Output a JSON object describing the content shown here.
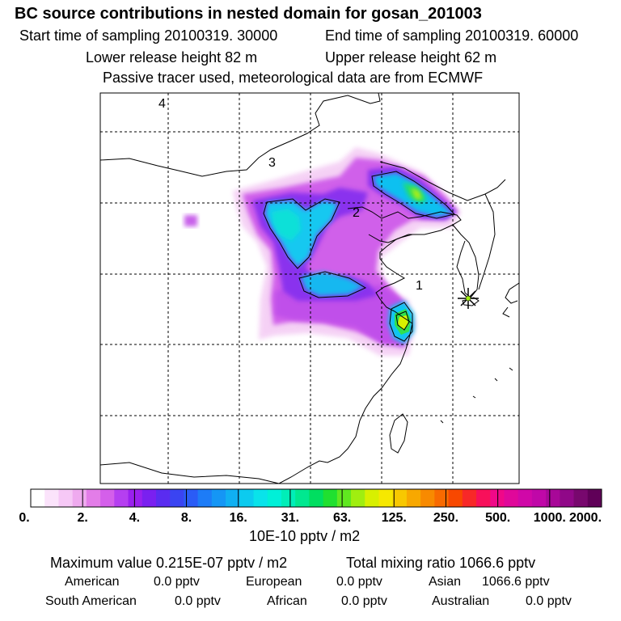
{
  "title": "BC  source contributions in nested domain for gosan_201003",
  "sampling": {
    "start": "Start time of sampling 20100319. 30000",
    "end": "End time of sampling 20100319. 60000"
  },
  "release": {
    "lower": "Lower release height   82 m",
    "upper": "Upper release height   62 m"
  },
  "tracer_note": "Passive tracer used, meteorological data are from ECMWF",
  "map": {
    "domain_labels": [
      "1",
      "2",
      "3",
      "4"
    ],
    "receptor_marker": "asterisk-receptor-icon"
  },
  "colorbar": {
    "tick_labels": [
      "0.",
      "2.",
      "4.",
      "8.",
      "16.",
      "31.",
      "63.",
      "125.",
      "250.",
      "500.",
      "1000.",
      "2000."
    ],
    "unit": "10E-10 pptv / m2",
    "colors": [
      "#ffffff",
      "#fbe3fb",
      "#f6c8f6",
      "#efaaef",
      "#e37de8",
      "#d45fea",
      "#b53ff0",
      "#9a20ee",
      "#7a20f0",
      "#5a2cf0",
      "#3a44f2",
      "#2a5cf6",
      "#1d7cf7",
      "#1596f5",
      "#10b0f2",
      "#0ccbef",
      "#09e3ea",
      "#00f0d8",
      "#00eeb8",
      "#00e890",
      "#00de60",
      "#20e030",
      "#60e820",
      "#a0ee10",
      "#d8f000",
      "#f6e800",
      "#f8c800",
      "#f8a800",
      "#f88a00",
      "#f86a00",
      "#f84800",
      "#f82828",
      "#f8105a",
      "#f00888",
      "#e0089a",
      "#d008a8",
      "#c008a8",
      "#a80898",
      "#900888",
      "#78086e",
      "#600058"
    ]
  },
  "summary": {
    "max_value": "Maximum value  0.215E-07 pptv / m2",
    "total_mixing": "Total mixing ratio     1066.6 pptv",
    "sources": [
      {
        "name": "American",
        "value": "0.0 pptv"
      },
      {
        "name": "European",
        "value": "0.0 pptv"
      },
      {
        "name": "Asian",
        "value": "1066.6 pptv"
      },
      {
        "name": "South American",
        "value": "0.0 pptv"
      },
      {
        "name": "African",
        "value": "0.0 pptv"
      },
      {
        "name": "Australian",
        "value": "0.0 pptv"
      }
    ]
  }
}
